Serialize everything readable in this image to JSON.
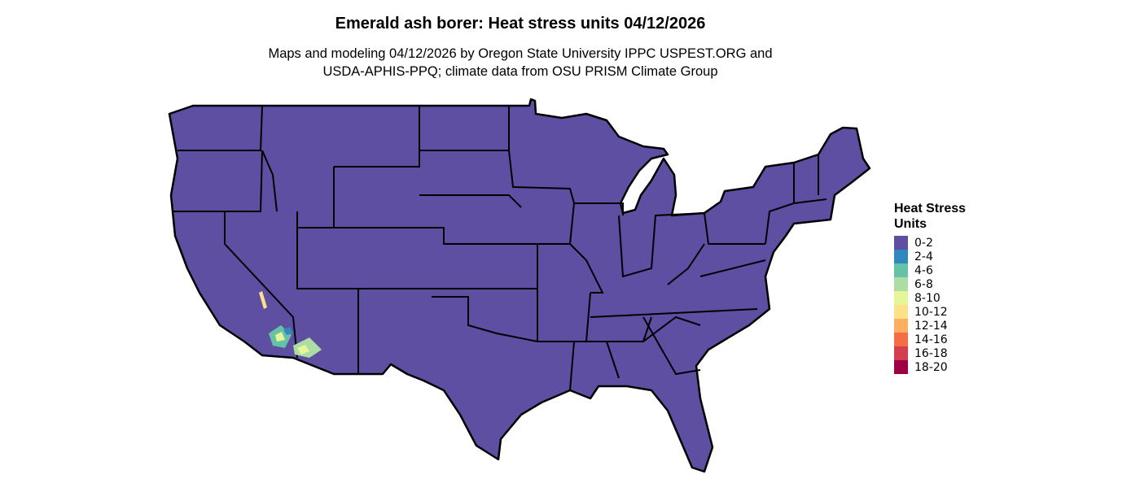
{
  "title": "Emerald ash borer: Heat stress units 04/12/2026",
  "subtitle_line1": "Maps and modeling 04/12/2026 by Oregon State University IPPC USPEST.ORG and",
  "subtitle_line2": "USDA-APHIS-PPQ; climate data from OSU PRISM Climate Group",
  "map": {
    "base_fill": "#5E4FA2",
    "border_color": "#000000"
  },
  "legend": {
    "title_line1": "Heat Stress",
    "title_line2": "Units",
    "items": [
      {
        "label": "0-2",
        "color": "#5E4FA2"
      },
      {
        "label": "2-4",
        "color": "#3288BD"
      },
      {
        "label": "4-6",
        "color": "#66C2A5"
      },
      {
        "label": "6-8",
        "color": "#ABDDA4"
      },
      {
        "label": "8-10",
        "color": "#E6F598"
      },
      {
        "label": "10-12",
        "color": "#FEE08B"
      },
      {
        "label": "12-14",
        "color": "#FDAE61"
      },
      {
        "label": "14-16",
        "color": "#F46D43"
      },
      {
        "label": "16-18",
        "color": "#D53E4F"
      },
      {
        "label": "18-20",
        "color": "#9E0142"
      }
    ]
  }
}
